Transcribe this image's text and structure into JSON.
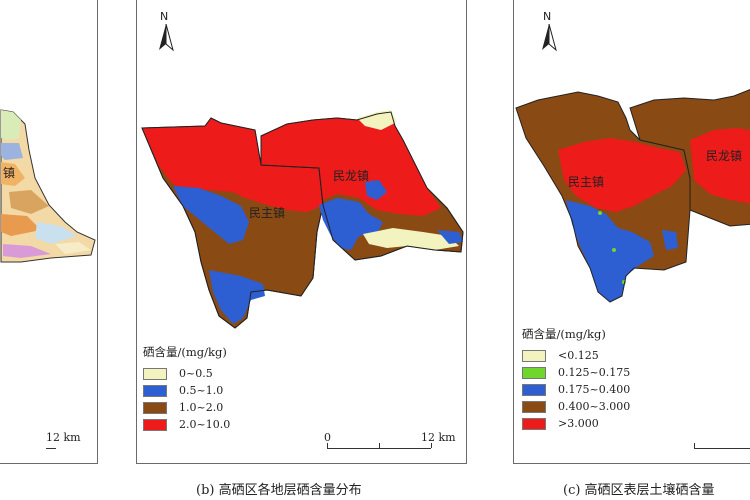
{
  "panel_b": {
    "legend_title": "硒含量/(mg/kg)",
    "legend": [
      {
        "label": "0~0.5",
        "color": "#f3f3c0"
      },
      {
        "label": "0.5~1.0",
        "color": "#2d5fd3"
      },
      {
        "label": "1.0~2.0",
        "color": "#8a4a14"
      },
      {
        "label": "2.0~10.0",
        "color": "#ee1b1b"
      }
    ],
    "scale_start": "0",
    "scale_end": "12 km",
    "towns": [
      "民主镇",
      "民龙镇"
    ],
    "north": "N",
    "caption": "(b) 高硒区各地层硒含量分布"
  },
  "panel_c": {
    "legend_title": "硒含量/(mg/kg)",
    "legend": [
      {
        "label": "<0.125",
        "color": "#f3f3c0"
      },
      {
        "label": "0.125~0.175",
        "color": "#6fd62c"
      },
      {
        "label": "0.175~0.400",
        "color": "#2d5fd3"
      },
      {
        "label": "0.400~3.000",
        "color": "#8a4a14"
      },
      {
        "label": ">3.000",
        "color": "#ee1b1b"
      }
    ],
    "towns": [
      "民主镇",
      "民龙镇"
    ],
    "north": "N",
    "caption": "(c) 高硒区表层土壤硒含量"
  },
  "panel_a": {
    "scale_end": "12 km"
  },
  "colors": {
    "frame": "#6b6b6b",
    "brown": "#8a4a14",
    "red": "#ee1b1b",
    "blue": "#2d5fd3",
    "cream": "#f3f3c0"
  }
}
